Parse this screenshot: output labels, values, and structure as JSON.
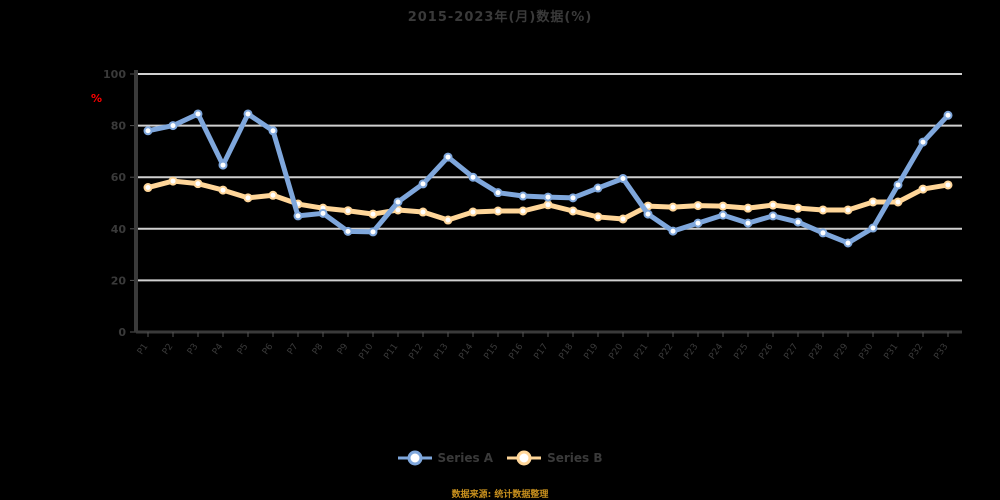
{
  "chart_data": {
    "type": "line",
    "title": "2015-2023年(月)数据(%)",
    "unit_label": "%",
    "xlabel": "",
    "ylabel": "",
    "ylim": [
      0,
      100
    ],
    "yticks": [
      0,
      20,
      40,
      60,
      80,
      100
    ],
    "grid": true,
    "legend_position": "bottom",
    "x": [
      "P1",
      "P2",
      "P3",
      "P4",
      "P5",
      "P6",
      "P7",
      "P8",
      "P9",
      "P10",
      "P11",
      "P12",
      "P13",
      "P14",
      "P15",
      "P16",
      "P17",
      "P18",
      "P19",
      "P20",
      "P21",
      "P22",
      "P23",
      "P24",
      "P25",
      "P26",
      "P27",
      "P28",
      "P29",
      "P30",
      "P31",
      "P32",
      "P33"
    ],
    "series": [
      {
        "name": "Series A",
        "color": "#7fa7dc",
        "values": [
          78,
          80,
          84.5,
          64.7,
          84.5,
          78,
          45,
          46,
          39,
          38.8,
          50.4,
          57.4,
          67.8,
          60,
          54,
          52.7,
          52.3,
          52,
          55.8,
          59.5,
          45.7,
          39.1,
          42.2,
          45.3,
          42.2,
          45,
          42.6,
          38.4,
          34.5,
          40.3,
          57,
          73.6,
          84
        ]
      },
      {
        "name": "Series B",
        "color": "#ffd699",
        "values": [
          56,
          58.5,
          57.5,
          55,
          52,
          53,
          49.6,
          48,
          47,
          45.7,
          47.3,
          46.5,
          43.4,
          46.5,
          46.9,
          46.9,
          49.3,
          46.9,
          44.6,
          43.8,
          48.8,
          48.4,
          49,
          48.8,
          48,
          49.2,
          48,
          47.3,
          47.3,
          50.4,
          50.4,
          55.4,
          57
        ]
      }
    ],
    "source": "数据来源: 统计数据整理"
  }
}
